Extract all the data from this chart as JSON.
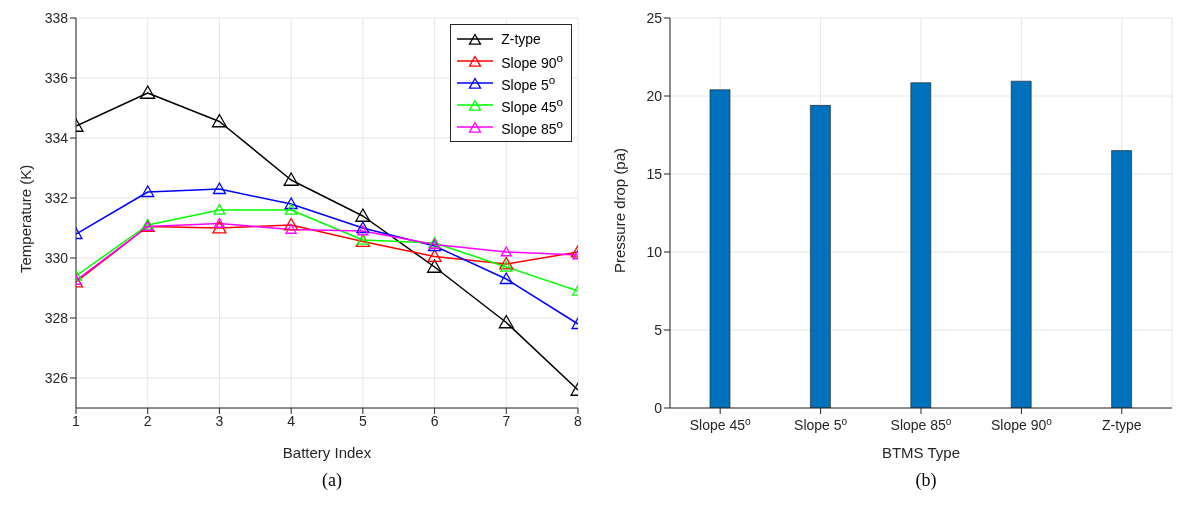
{
  "chart_data": [
    {
      "type": "line",
      "xlabel": "Battery Index",
      "ylabel": "Temperature (K)",
      "x": [
        1,
        2,
        3,
        4,
        5,
        6,
        7,
        8
      ],
      "xlim": [
        1,
        8
      ],
      "xticks": [
        1,
        2,
        3,
        4,
        5,
        6,
        7,
        8
      ],
      "ylim": [
        325,
        338
      ],
      "yticks": [
        326,
        328,
        330,
        332,
        334,
        336,
        338
      ],
      "grid": true,
      "legend": "top right",
      "marker": "triangle",
      "line_style": "solid",
      "annotations": [
        "(a)"
      ],
      "series": [
        {
          "name": "Z-type",
          "color": "#000000",
          "values": [
            334.4,
            335.5,
            334.55,
            332.6,
            331.4,
            329.7,
            327.85,
            325.6
          ]
        },
        {
          "name": "Slope 90$^{o}$",
          "color": "#ff0000",
          "values": [
            329.2,
            331.05,
            331.0,
            331.1,
            330.55,
            330.05,
            329.8,
            330.2
          ]
        },
        {
          "name": "Slope 5$^{o}$",
          "color": "#0000ff",
          "values": [
            330.8,
            332.2,
            332.3,
            331.8,
            331.0,
            330.4,
            329.3,
            327.8
          ]
        },
        {
          "name": "Slope 45$^{o}$",
          "color": "#00ff00",
          "values": [
            329.4,
            331.1,
            331.6,
            331.6,
            330.6,
            330.5,
            329.7,
            328.9
          ]
        },
        {
          "name": "Slope 85$^{o}$",
          "color": "#ff00ff",
          "values": [
            329.25,
            331.05,
            331.15,
            330.95,
            330.9,
            330.45,
            330.2,
            330.1
          ]
        }
      ]
    },
    {
      "type": "bar",
      "xlabel": "BTMS Type",
      "ylabel": "Pressure drop (pa)",
      "categories": [
        "Slope 45$^{o}$",
        "Slope 5$^{o}$",
        "Slope 85$^{o}$",
        "Slope 90$^{o}$",
        "Z-type"
      ],
      "values": [
        20.4,
        19.4,
        20.85,
        20.95,
        16.5
      ],
      "color": "#0072bd",
      "ylim": [
        0,
        25
      ],
      "yticks": [
        0,
        5,
        10,
        15,
        20,
        25
      ],
      "grid": true,
      "annotations": [
        "(b)"
      ]
    }
  ]
}
